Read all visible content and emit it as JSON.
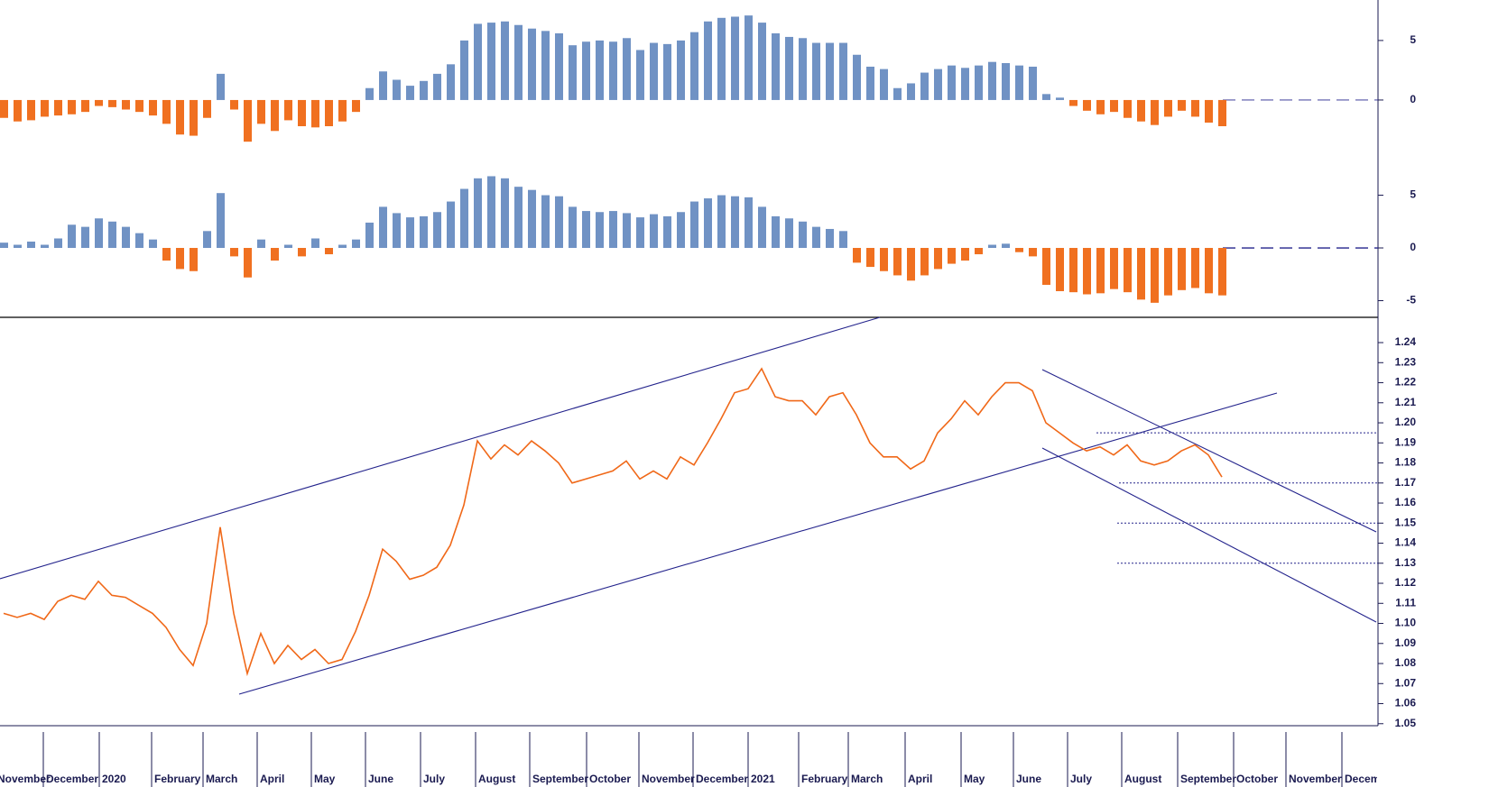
{
  "chart_data": [
    {
      "type": "bar",
      "ylim": [
        -4.85,
        8.4
      ],
      "yticks": [
        0,
        5
      ],
      "positive_color": "#7092c4",
      "negative_color": "#f07020",
      "values": [
        -1.5,
        -1.8,
        -1.7,
        -1.4,
        -1.3,
        -1.2,
        -1.0,
        -0.5,
        -0.6,
        -0.8,
        -1.0,
        -1.3,
        -2.0,
        -2.9,
        -3.0,
        -1.5,
        2.2,
        -0.8,
        -3.5,
        -2.0,
        -2.6,
        -1.7,
        -2.2,
        -2.3,
        -2.2,
        -1.8,
        -1.0,
        1.0,
        2.4,
        1.7,
        1.2,
        1.6,
        2.2,
        3.0,
        5.0,
        6.4,
        6.5,
        6.6,
        6.3,
        6.0,
        5.8,
        5.6,
        4.6,
        4.9,
        5.0,
        4.9,
        5.2,
        4.2,
        4.8,
        4.7,
        5.0,
        5.7,
        6.6,
        6.9,
        7.0,
        7.1,
        6.5,
        5.6,
        5.3,
        5.2,
        4.8,
        4.8,
        4.8,
        3.8,
        2.8,
        2.6,
        1.0,
        1.4,
        2.3,
        2.6,
        2.9,
        2.7,
        2.9,
        3.2,
        3.1,
        2.9,
        2.8,
        0.5,
        0.2,
        -0.5,
        -0.9,
        -1.2,
        -1.0,
        -1.5,
        -1.8,
        -2.1,
        -1.4,
        -0.9,
        -1.4,
        -1.9,
        -2.2
      ]
    },
    {
      "type": "bar",
      "ylim": [
        -6.58,
        8.55
      ],
      "yticks": [
        5,
        0,
        -5
      ],
      "positive_color": "#7092c4",
      "negative_color": "#f07020",
      "values": [
        0.5,
        0.3,
        0.6,
        0.3,
        0.9,
        2.2,
        2.0,
        2.8,
        2.5,
        2.0,
        1.4,
        0.8,
        -1.2,
        -2.0,
        -2.2,
        1.6,
        5.2,
        -0.8,
        -2.8,
        0.8,
        -1.2,
        0.3,
        -0.8,
        0.9,
        -0.6,
        0.3,
        0.8,
        2.4,
        3.9,
        3.3,
        2.9,
        3.0,
        3.4,
        4.4,
        5.6,
        6.6,
        6.8,
        6.6,
        5.8,
        5.5,
        5.0,
        4.9,
        3.9,
        3.5,
        3.4,
        3.5,
        3.3,
        2.9,
        3.2,
        3.0,
        3.4,
        4.4,
        4.7,
        5.0,
        4.9,
        4.8,
        3.9,
        3.0,
        2.8,
        2.5,
        2.0,
        1.8,
        1.6,
        -1.4,
        -1.8,
        -2.2,
        -2.6,
        -3.1,
        -2.6,
        -2.0,
        -1.5,
        -1.2,
        -0.6,
        0.3,
        0.4,
        -0.4,
        -0.8,
        -3.5,
        -4.1,
        -4.2,
        -4.4,
        -4.3,
        -3.9,
        -4.2,
        -4.9,
        -5.2,
        -4.5,
        -4.0,
        -3.8,
        -4.3,
        -4.5
      ]
    },
    {
      "type": "line",
      "ylim": [
        1.049,
        1.2526
      ],
      "color": "#f06818",
      "level_color": "#23238c",
      "yticks": [
        1.05,
        1.06,
        1.07,
        1.08,
        1.09,
        {
          "value": 1.1,
          "label": "1.10"
        },
        1.11,
        1.12,
        1.13,
        1.14,
        1.15,
        1.16,
        1.17,
        1.18,
        1.19,
        {
          "value": 1.2,
          "label": "1.20"
        },
        1.21,
        1.22,
        1.23,
        1.24
      ],
      "levels": [
        1.195,
        1.17,
        1.15,
        1.13
      ],
      "values": [
        1.105,
        1.103,
        1.105,
        1.102,
        1.111,
        1.114,
        1.112,
        1.121,
        1.114,
        1.113,
        1.109,
        1.105,
        1.098,
        1.087,
        1.079,
        1.1,
        1.148,
        1.105,
        1.075,
        1.095,
        1.08,
        1.089,
        1.082,
        1.087,
        1.08,
        1.082,
        1.096,
        1.114,
        1.137,
        1.131,
        1.122,
        1.124,
        1.128,
        1.139,
        1.159,
        1.191,
        1.182,
        1.189,
        1.184,
        1.191,
        1.186,
        1.18,
        1.17,
        1.172,
        1.174,
        1.176,
        1.181,
        1.172,
        1.176,
        1.172,
        1.183,
        1.179,
        1.19,
        1.202,
        1.215,
        1.217,
        1.227,
        1.213,
        1.211,
        1.211,
        1.204,
        1.213,
        1.215,
        1.204,
        1.19,
        1.183,
        1.183,
        1.177,
        1.181,
        1.195,
        1.202,
        1.211,
        1.204,
        1.213,
        1.22,
        1.22,
        1.216,
        1.2,
        1.195,
        1.19,
        1.186,
        1.188,
        1.184,
        1.189,
        1.181,
        1.179,
        1.181,
        1.186,
        1.189,
        1.184,
        1.173
      ]
    }
  ],
  "x_axis": {
    "labels": [
      "November",
      "December",
      "2020",
      "February",
      "March",
      "April",
      "May",
      "June",
      "July",
      "August",
      "September",
      "October",
      "November",
      "December",
      "2021",
      "February",
      "March",
      "April",
      "May",
      "June",
      "July",
      "August",
      "September",
      "October",
      "November",
      "December"
    ]
  }
}
